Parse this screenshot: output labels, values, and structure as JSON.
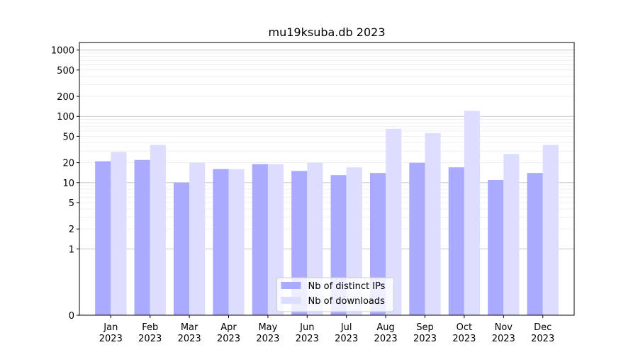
{
  "chart_data": {
    "type": "bar",
    "title": "mu19ksuba.db 2023",
    "xlabel": "",
    "ylabel": "",
    "yscale": "symlog",
    "ylim": [
      0,
      1300
    ],
    "categories": [
      "Jan\n2023",
      "Feb\n2023",
      "Mar\n2023",
      "Apr\n2023",
      "May\n2023",
      "Jun\n2023",
      "Jul\n2023",
      "Aug\n2023",
      "Sep\n2023",
      "Oct\n2023",
      "Nov\n2023",
      "Dec\n2023"
    ],
    "yticks": [
      0,
      1,
      2,
      5,
      10,
      20,
      50,
      100,
      200,
      500,
      1000
    ],
    "ytick_labels": [
      "0",
      "1",
      "2",
      "5",
      "10",
      "20",
      "50",
      "100",
      "200",
      "500",
      "1000"
    ],
    "series": [
      {
        "name": "Nb of distinct IPs",
        "color": "#aaaaff",
        "values": [
          21,
          22,
          10,
          16,
          19,
          15,
          13,
          14,
          20,
          17,
          11,
          14
        ]
      },
      {
        "name": "Nb of downloads",
        "color": "#ddddff",
        "values": [
          29,
          37,
          20,
          16,
          19,
          20,
          17,
          65,
          56,
          121,
          27,
          37
        ]
      }
    ],
    "legend_position": "lower-center",
    "grid": true
  }
}
